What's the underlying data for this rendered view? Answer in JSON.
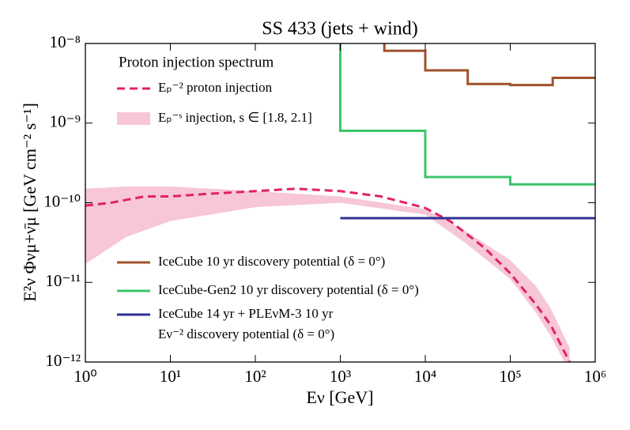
{
  "chart_data": {
    "type": "line",
    "title": "SS 433 (jets + wind)",
    "xlabel": "Eν [GeV]",
    "ylabel": "E²ν Φνμ+ν̄μ [GeV cm⁻² s⁻¹]",
    "xscale": "log",
    "yscale": "log",
    "xlim": [
      1,
      1000000
    ],
    "ylim": [
      1e-12,
      1e-08
    ],
    "xticks": [
      {
        "value": 1,
        "label": "10⁰"
      },
      {
        "value": 10,
        "label": "10¹"
      },
      {
        "value": 100,
        "label": "10²"
      },
      {
        "value": 1000,
        "label": "10³"
      },
      {
        "value": 10000,
        "label": "10⁴"
      },
      {
        "value": 100000,
        "label": "10⁵"
      },
      {
        "value": 1000000,
        "label": "10⁶"
      }
    ],
    "yticks": [
      {
        "value": 1e-12,
        "label": "10⁻¹²"
      },
      {
        "value": 1e-11,
        "label": "10⁻¹¹"
      },
      {
        "value": 1e-10,
        "label": "10⁻¹⁰"
      },
      {
        "value": 1e-09,
        "label": "10⁻⁹"
      },
      {
        "value": 1e-08,
        "label": "10⁻⁸"
      }
    ],
    "legend_title": "Proton injection spectrum",
    "series": [
      {
        "name": "Eₚ⁻² proton injection",
        "color": "#e0245e",
        "style": "dashed",
        "x": [
          1,
          2,
          5,
          10,
          30,
          100,
          300,
          1000,
          3000,
          10000,
          20000,
          50000,
          100000,
          200000,
          300000,
          500000
        ],
        "values": [
          9.2e-11,
          1e-10,
          1.2e-10,
          1.2e-10,
          1.3e-10,
          1.4e-10,
          1.5e-10,
          1.4e-10,
          1.2e-10,
          8.6e-11,
          5.8e-11,
          2.7e-11,
          1.3e-11,
          5.3e-12,
          2.9e-12,
          1e-12
        ]
      },
      {
        "name": "Eₚ⁻ˢ injection, s ∈ [1.8, 2.1]",
        "color": "#f7c6d9",
        "style": "band",
        "x": [
          1,
          3,
          10,
          100,
          1000,
          10000,
          30000,
          100000,
          200000,
          300000,
          500000
        ],
        "upper": [
          1.5e-10,
          1.6e-10,
          1.6e-10,
          1.4e-10,
          1.2e-10,
          8.3e-11,
          4.4e-11,
          1.9e-11,
          9e-12,
          4.7e-12,
          1.5e-12
        ],
        "lower": [
          1.7e-11,
          3.7e-11,
          5.9e-11,
          8.8e-11,
          1e-10,
          7.1e-11,
          3.1e-11,
          1.1e-11,
          4.2e-12,
          2.1e-12,
          7.5e-13
        ]
      },
      {
        "name": "IceCube 10 yr discovery potential (δ = 0°)",
        "color": "#a0522d",
        "style": "solid",
        "x": [
          3300,
          3300,
          10000,
          10000,
          31600,
          31600,
          100000,
          100000,
          316000,
          316000,
          1000000
        ],
        "values": [
          1e-08,
          8.1e-09,
          8.1e-09,
          4.6e-09,
          4.6e-09,
          3.1e-09,
          3.1e-09,
          3e-09,
          3e-09,
          3.7e-09,
          3.7e-09
        ]
      },
      {
        "name": "IceCube-Gen2 10 yr discovery potential (δ = 0°)",
        "color": "#3cc46a",
        "style": "solid",
        "x": [
          1000,
          1000,
          10000,
          10000,
          100000,
          100000,
          1000000
        ],
        "values": [
          1e-08,
          8e-10,
          8e-10,
          2.1e-10,
          2.1e-10,
          1.7e-10,
          1.7e-10
        ]
      },
      {
        "name": "IceCube 14 yr + PLEνM-3 10 yr\nEν⁻² discovery potential (δ = 0°)",
        "color": "#2e3192",
        "style": "solid",
        "x": [
          1000,
          1000000
        ],
        "values": [
          6.4e-11,
          6.4e-11
        ]
      }
    ]
  }
}
